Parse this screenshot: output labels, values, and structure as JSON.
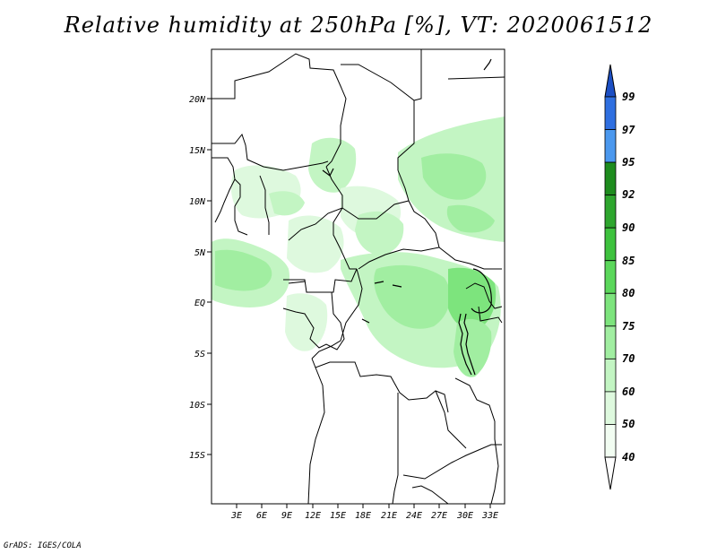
{
  "title": "Relative humidity at 250hPa [%], VT: 2020061512",
  "credit": "GrADS: IGES/COLA",
  "map": {
    "lat_labels": [
      "20N",
      "15N",
      "10N",
      "5N",
      "EQ",
      "5S",
      "10S",
      "15S"
    ],
    "lon_labels": [
      "3E",
      "6E",
      "9E",
      "12E",
      "15E",
      "18E",
      "21E",
      "24E",
      "27E",
      "30E",
      "33E"
    ]
  },
  "colorbar": {
    "levels": [
      "99",
      "97",
      "95",
      "92",
      "90",
      "85",
      "80",
      "75",
      "70",
      "60",
      "50",
      "40"
    ],
    "colors": [
      "#1c4fc4",
      "#2f6fe0",
      "#4b98ee",
      "#1e8c1e",
      "#2ea62e",
      "#3ec23e",
      "#5bd75b",
      "#7de47d",
      "#a1eea1",
      "#c3f5c3",
      "#def9de",
      "#f2fdf2"
    ]
  }
}
